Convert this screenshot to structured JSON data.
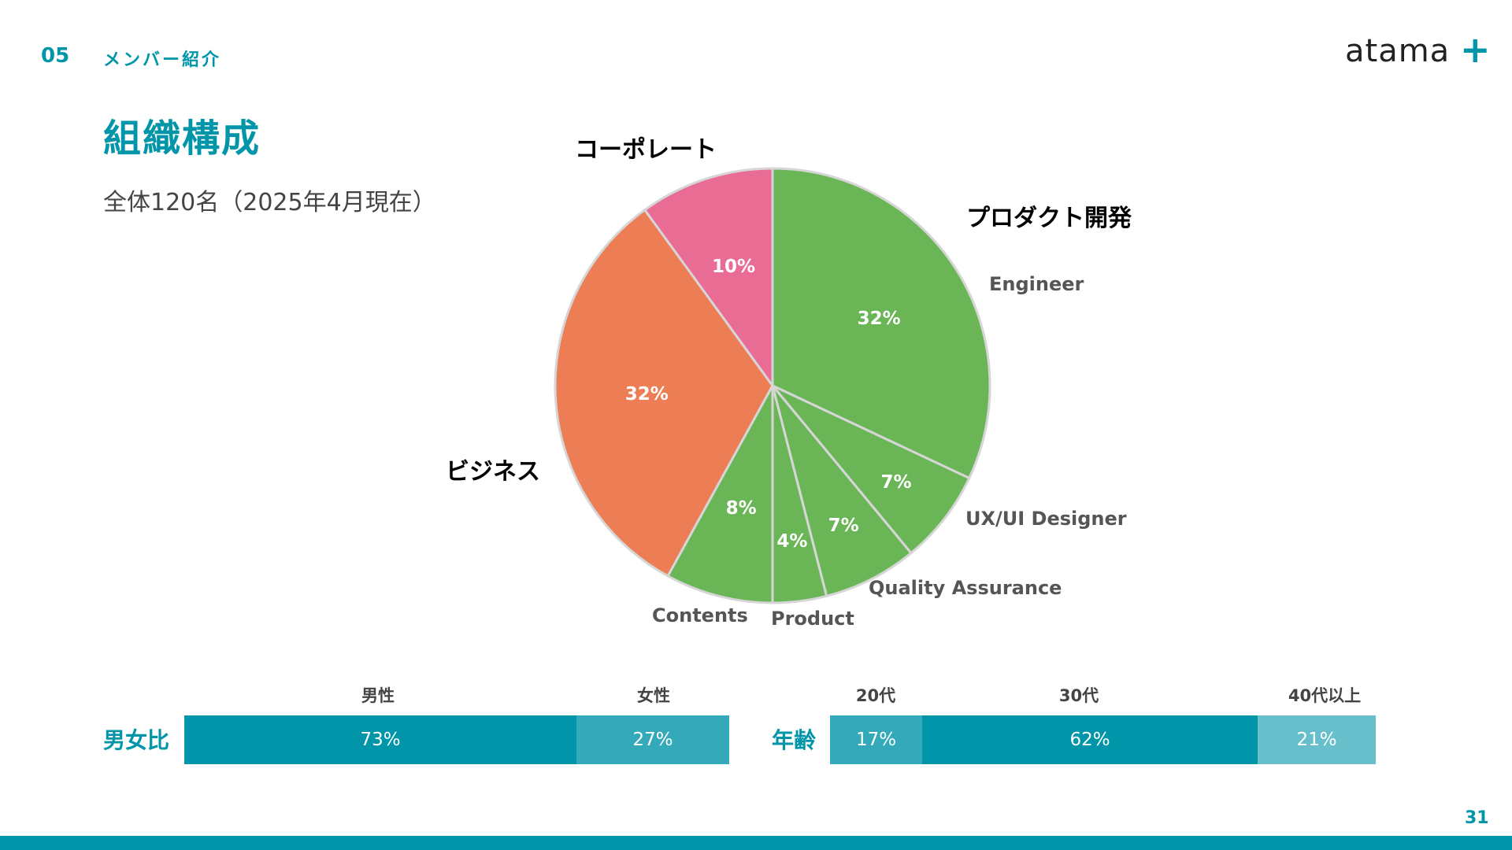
{
  "header": {
    "section_number": "05",
    "section_title": "メンバー紹介",
    "logo_text": "atama",
    "logo_mark": "+"
  },
  "main": {
    "title": "組織構成",
    "subtitle": "全体120名（2025年4月現在）"
  },
  "colors": {
    "accent": "#0095a8",
    "product": "#6ab657",
    "business": "#ec7d55",
    "corporate": "#e96c95",
    "bar_dark": "#0095a8",
    "bar_mid": "#33a9b9",
    "bar_light": "#66bfcb"
  },
  "chart_data": [
    {
      "type": "pie",
      "categories": [
        {
          "name": "プロダクト開発",
          "color": "#6ab657"
        },
        {
          "name": "ビジネス",
          "color": "#ec7d55"
        },
        {
          "name": "コーポレート",
          "color": "#e96c95"
        }
      ],
      "slices": [
        {
          "label": "Engineer",
          "value": 32,
          "value_label": "32%",
          "category": "プロダクト開発"
        },
        {
          "label": "UX/UI Designer",
          "value": 7,
          "value_label": "7%",
          "category": "プロダクト開発"
        },
        {
          "label": "Quality Assurance",
          "value": 7,
          "value_label": "7%",
          "category": "プロダクト開発"
        },
        {
          "label": "Product",
          "value": 4,
          "value_label": "4%",
          "category": "プロダクト開発"
        },
        {
          "label": "Contents",
          "value": 8,
          "value_label": "8%",
          "category": "プロダクト開発"
        },
        {
          "label": "",
          "value": 32,
          "value_label": "32%",
          "category": "ビジネス"
        },
        {
          "label": "",
          "value": 10,
          "value_label": "10%",
          "category": "コーポレート"
        }
      ]
    },
    {
      "type": "bar",
      "title": "男女比",
      "orientation": "stacked-horizontal",
      "categories": [
        "男性",
        "女性"
      ],
      "values": [
        73,
        27
      ],
      "value_labels": [
        "73%",
        "27%"
      ]
    },
    {
      "type": "bar",
      "title": "年齢",
      "orientation": "stacked-horizontal",
      "categories": [
        "20代",
        "30代",
        "40代以上"
      ],
      "values": [
        17,
        62,
        21
      ],
      "value_labels": [
        "17%",
        "62%",
        "21%"
      ]
    }
  ],
  "footer": {
    "page_number": "31"
  }
}
